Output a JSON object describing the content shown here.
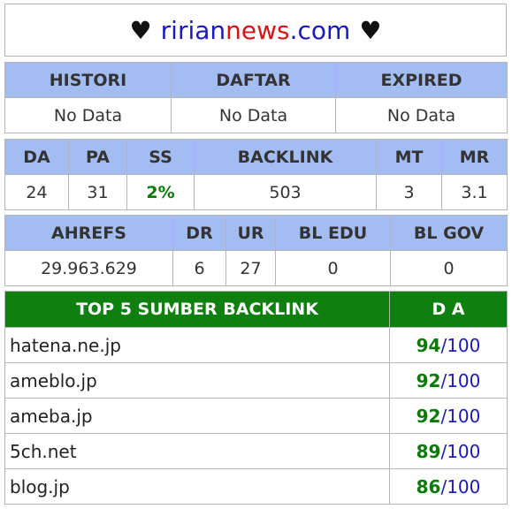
{
  "header": {
    "heart_left": "♥",
    "brand_part1": "ririan",
    "brand_part2": "news",
    "brand_part3": ".com",
    "heart_right": "♥"
  },
  "table1": {
    "headers": [
      "HISTORI",
      "DAFTAR",
      "EXPIRED"
    ],
    "values": [
      "No Data",
      "No Data",
      "No Data"
    ]
  },
  "table2": {
    "headers": [
      "DA",
      "PA",
      "SS",
      "BACKLINK",
      "MT",
      "MR"
    ],
    "values": [
      "24",
      "31",
      "2%",
      "503",
      "3",
      "3.1"
    ]
  },
  "table3": {
    "headers": [
      "AHREFS",
      "DR",
      "UR",
      "BL EDU",
      "BL GOV"
    ],
    "values": [
      "29.963.629",
      "6",
      "27",
      "0",
      "0"
    ]
  },
  "backlinks": {
    "header_source": "TOP 5 SUMBER BACKLINK",
    "header_da": "D A",
    "rows": [
      {
        "domain": "hatena.ne.jp",
        "score": "94",
        "max": "/100"
      },
      {
        "domain": "ameblo.jp",
        "score": "92",
        "max": "/100"
      },
      {
        "domain": "ameba.jp",
        "score": "92",
        "max": "/100"
      },
      {
        "domain": "5ch.net",
        "score": "89",
        "max": "/100"
      },
      {
        "domain": "blog.jp",
        "score": "86",
        "max": "/100"
      }
    ]
  },
  "colors": {
    "header_blue": "#a3bcf2",
    "header_green": "#0f7f0f",
    "brand_blue": "#1a1ab8",
    "brand_red": "#d31515",
    "value_green": "#0a7a0a"
  }
}
